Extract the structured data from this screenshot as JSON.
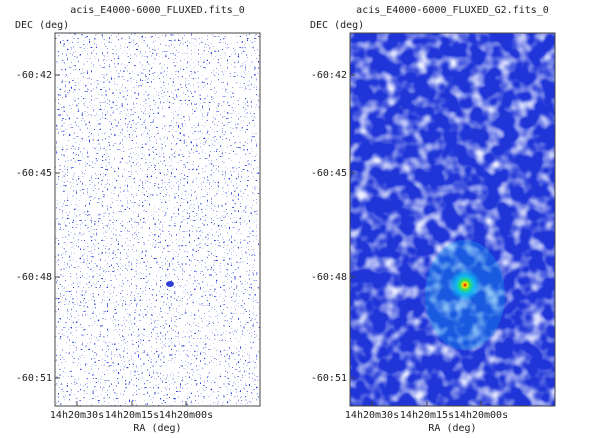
{
  "panels": [
    {
      "title": "acis_E4000-6000_FLUXED.fits_0",
      "y_label": "DEC (deg)",
      "x_label": "RA (deg)",
      "y_ticks": [
        "-60:42",
        "-60:45",
        "-60:48",
        "-60:51"
      ],
      "x_ticks": [
        "14h20m30s",
        "14h20m15s",
        "14h20m00s"
      ]
    },
    {
      "title": "acis_E4000-6000_FLUXED_G2.fits_0",
      "y_label": "DEC (deg)",
      "x_label": "RA (deg)",
      "y_ticks": [
        "-60:42",
        "-60:45",
        "-60:48",
        "-60:51"
      ],
      "x_ticks": [
        "14h20m30s",
        "14h20m15s",
        "14h20m00s"
      ]
    }
  ]
}
